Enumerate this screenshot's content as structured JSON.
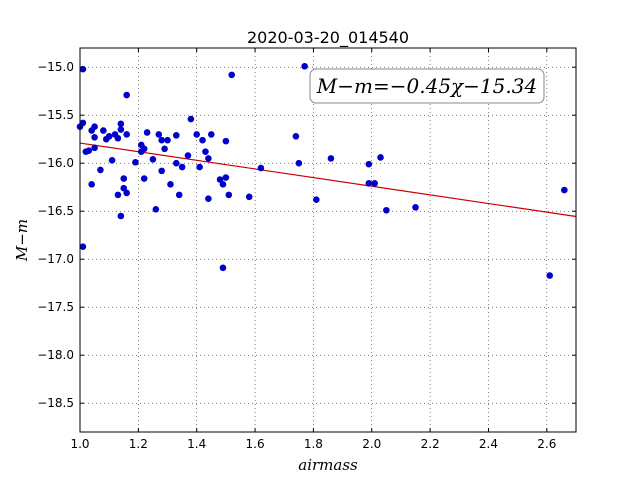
{
  "chart_data": {
    "type": "scatter",
    "title": "2020-03-20_014540",
    "xlabel": "airmass",
    "ylabel": "M−m",
    "xlim": [
      1.0,
      2.7
    ],
    "ylim": [
      -18.8,
      -14.8
    ],
    "y_inverted": true,
    "xticks": [
      1.0,
      1.2,
      1.4,
      1.6,
      1.8,
      2.0,
      2.2,
      2.4,
      2.6
    ],
    "xtick_labels": [
      "1.0",
      "1.2",
      "1.4",
      "1.6",
      "1.8",
      "2.0",
      "2.2",
      "2.4",
      "2.6"
    ],
    "yticks": [
      -15.0,
      -15.5,
      -16.0,
      -16.5,
      -17.0,
      -17.5,
      -18.0,
      -18.5
    ],
    "ytick_labels": [
      "−15.0",
      "−15.5",
      "−16.0",
      "−16.5",
      "−17.0",
      "−17.5",
      "−18.0",
      "−18.5"
    ],
    "grid": true,
    "point_color": "#0000cc",
    "line_color": "#cc0000",
    "fit": {
      "slope": -0.45,
      "intercept": -15.34
    },
    "annotation": "M−m=−0.45χ−15.34",
    "points": [
      [
        1.0,
        -15.62
      ],
      [
        1.01,
        -15.58
      ],
      [
        1.01,
        -16.87
      ],
      [
        1.01,
        -15.02
      ],
      [
        1.02,
        -15.88
      ],
      [
        1.03,
        -15.87
      ],
      [
        1.04,
        -15.66
      ],
      [
        1.04,
        -16.22
      ],
      [
        1.05,
        -15.62
      ],
      [
        1.05,
        -15.73
      ],
      [
        1.05,
        -15.84
      ],
      [
        1.07,
        -16.07
      ],
      [
        1.08,
        -15.66
      ],
      [
        1.09,
        -15.75
      ],
      [
        1.1,
        -15.72
      ],
      [
        1.11,
        -15.97
      ],
      [
        1.12,
        -15.7
      ],
      [
        1.13,
        -15.74
      ],
      [
        1.13,
        -16.33
      ],
      [
        1.14,
        -15.59
      ],
      [
        1.14,
        -15.65
      ],
      [
        1.14,
        -16.55
      ],
      [
        1.15,
        -16.16
      ],
      [
        1.15,
        -16.26
      ],
      [
        1.16,
        -16.31
      ],
      [
        1.16,
        -15.29
      ],
      [
        1.16,
        -15.7
      ],
      [
        1.19,
        -15.99
      ],
      [
        1.21,
        -15.81
      ],
      [
        1.21,
        -15.88
      ],
      [
        1.22,
        -16.16
      ],
      [
        1.22,
        -15.85
      ],
      [
        1.23,
        -15.68
      ],
      [
        1.25,
        -15.96
      ],
      [
        1.26,
        -16.48
      ],
      [
        1.27,
        -15.7
      ],
      [
        1.28,
        -15.76
      ],
      [
        1.28,
        -16.08
      ],
      [
        1.29,
        -15.85
      ],
      [
        1.3,
        -15.76
      ],
      [
        1.31,
        -16.22
      ],
      [
        1.33,
        -15.71
      ],
      [
        1.33,
        -16.0
      ],
      [
        1.34,
        -16.33
      ],
      [
        1.35,
        -16.04
      ],
      [
        1.37,
        -15.92
      ],
      [
        1.38,
        -15.54
      ],
      [
        1.4,
        -15.7
      ],
      [
        1.41,
        -16.04
      ],
      [
        1.42,
        -15.76
      ],
      [
        1.43,
        -15.88
      ],
      [
        1.44,
        -15.95
      ],
      [
        1.44,
        -16.37
      ],
      [
        1.45,
        -15.7
      ],
      [
        1.48,
        -16.17
      ],
      [
        1.49,
        -17.09
      ],
      [
        1.49,
        -16.22
      ],
      [
        1.5,
        -15.77
      ],
      [
        1.5,
        -16.15
      ],
      [
        1.51,
        -16.33
      ],
      [
        1.52,
        -15.08
      ],
      [
        1.58,
        -16.35
      ],
      [
        1.62,
        -16.05
      ],
      [
        1.74,
        -15.72
      ],
      [
        1.75,
        -16.0
      ],
      [
        1.77,
        -14.99
      ],
      [
        1.81,
        -16.38
      ],
      [
        1.86,
        -15.95
      ],
      [
        1.99,
        -16.01
      ],
      [
        1.99,
        -16.21
      ],
      [
        2.01,
        -16.21
      ],
      [
        2.03,
        -15.94
      ],
      [
        2.05,
        -16.49
      ],
      [
        2.15,
        -16.46
      ],
      [
        2.61,
        -17.17
      ],
      [
        2.66,
        -16.28
      ]
    ]
  }
}
